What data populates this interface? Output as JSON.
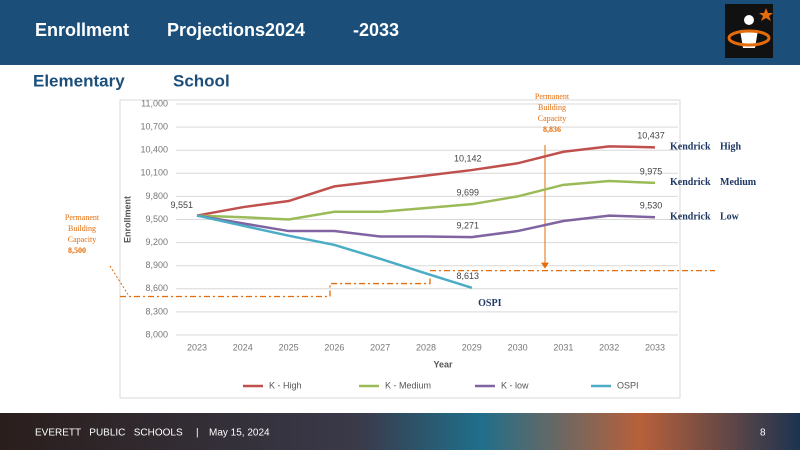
{
  "header": {
    "title": [
      "Enrollment",
      "Projections2024",
      "-2033"
    ],
    "subtitle": [
      "Elementary",
      "School"
    ]
  },
  "chart_data": {
    "type": "line",
    "x_label": "Year",
    "y_label": "Enrollment",
    "categories": [
      "2023",
      "2024",
      "2025",
      "2026",
      "2027",
      "2028",
      "2029",
      "2030",
      "2031",
      "2032",
      "2033"
    ],
    "ylim": [
      8000,
      11000
    ],
    "yticks": [
      {
        "value": 8000,
        "label": "8,000"
      },
      {
        "value": 8300,
        "label": "8,300"
      },
      {
        "value": 8600,
        "label": "8,600"
      },
      {
        "value": 8900,
        "label": "8,900"
      },
      {
        "value": 9200,
        "label": "9,200"
      },
      {
        "value": 9500,
        "label": "9,500"
      },
      {
        "value": 9800,
        "label": "9,800"
      },
      {
        "value": 10100,
        "label": "10,100"
      },
      {
        "value": 10400,
        "label": "10,400"
      },
      {
        "value": 10700,
        "label": "10,700"
      },
      {
        "value": 11000,
        "label": "11,000"
      }
    ],
    "grid": true,
    "legend": "bottom",
    "series": [
      {
        "name": "K - High",
        "color": "#c0504d",
        "end_label": [
          "Kendrick",
          "High"
        ],
        "values": [
          9551,
          9660,
          9740,
          9930,
          10000,
          10070,
          10142,
          10230,
          10380,
          10450,
          10437
        ],
        "value_labels": [
          "9,551",
          null,
          null,
          null,
          null,
          null,
          "10,142",
          null,
          null,
          null,
          "10,437"
        ]
      },
      {
        "name": "K - Medium",
        "color": "#9bbb59",
        "end_label": [
          "Kendrick",
          "Medium"
        ],
        "values": [
          9551,
          9530,
          9500,
          9600,
          9600,
          9650,
          9699,
          9800,
          9950,
          10000,
          9975
        ],
        "value_labels": [
          null,
          null,
          null,
          null,
          null,
          null,
          "9,699",
          null,
          null,
          null,
          "9,975"
        ]
      },
      {
        "name": "K - low",
        "color": "#8064a2",
        "end_label": [
          "Kendrick",
          "Low"
        ],
        "values": [
          9551,
          9450,
          9350,
          9350,
          9280,
          9280,
          9271,
          9350,
          9480,
          9550,
          9530
        ],
        "value_labels": [
          null,
          null,
          null,
          null,
          null,
          null,
          "9,271",
          null,
          null,
          null,
          "9,530"
        ]
      },
      {
        "name": "OSPI",
        "color": "#4bacc6",
        "end_label": [
          "OSPI"
        ],
        "values": [
          9551,
          9420,
          9290,
          9170,
          8990,
          8800,
          8613,
          null,
          null,
          null,
          null
        ],
        "value_labels": [
          null,
          null,
          null,
          null,
          null,
          null,
          "8,613",
          null,
          null,
          null,
          null
        ]
      }
    ],
    "capacity_lines": [
      {
        "label": [
          "Permanent",
          "Building",
          "Capacity"
        ],
        "value": 8500,
        "value_label": "8,500",
        "color": "#e46c0a"
      },
      {
        "label": [
          "Permanent",
          "Building",
          "Capacity"
        ],
        "value": 8836,
        "value_label": "8,836",
        "color": "#e46c0a"
      }
    ]
  },
  "footer": {
    "org": "EVERETT   PUBLIC   SCHOOLS",
    "separator": "|",
    "date": "May 15, 2024",
    "page": "8"
  }
}
